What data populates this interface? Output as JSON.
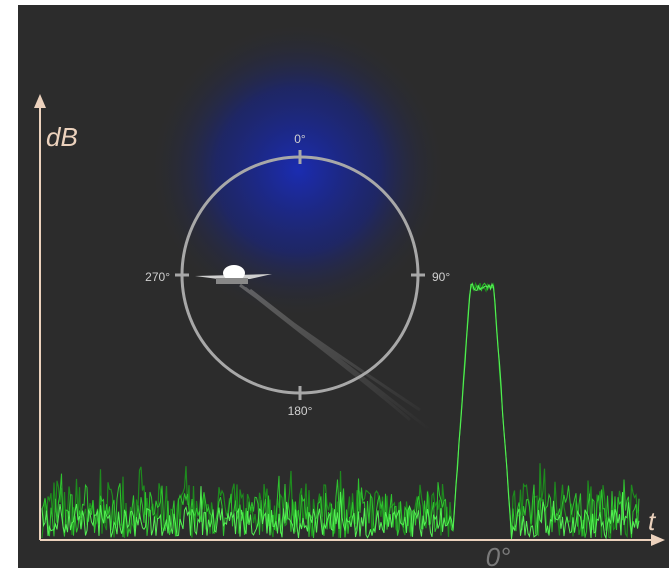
{
  "axes": {
    "y_label": "dB",
    "x_label": "t",
    "x_marker": "0°"
  },
  "compass": {
    "top": "0°",
    "right": "90°",
    "bottom": "180°",
    "left": "270°"
  }
}
